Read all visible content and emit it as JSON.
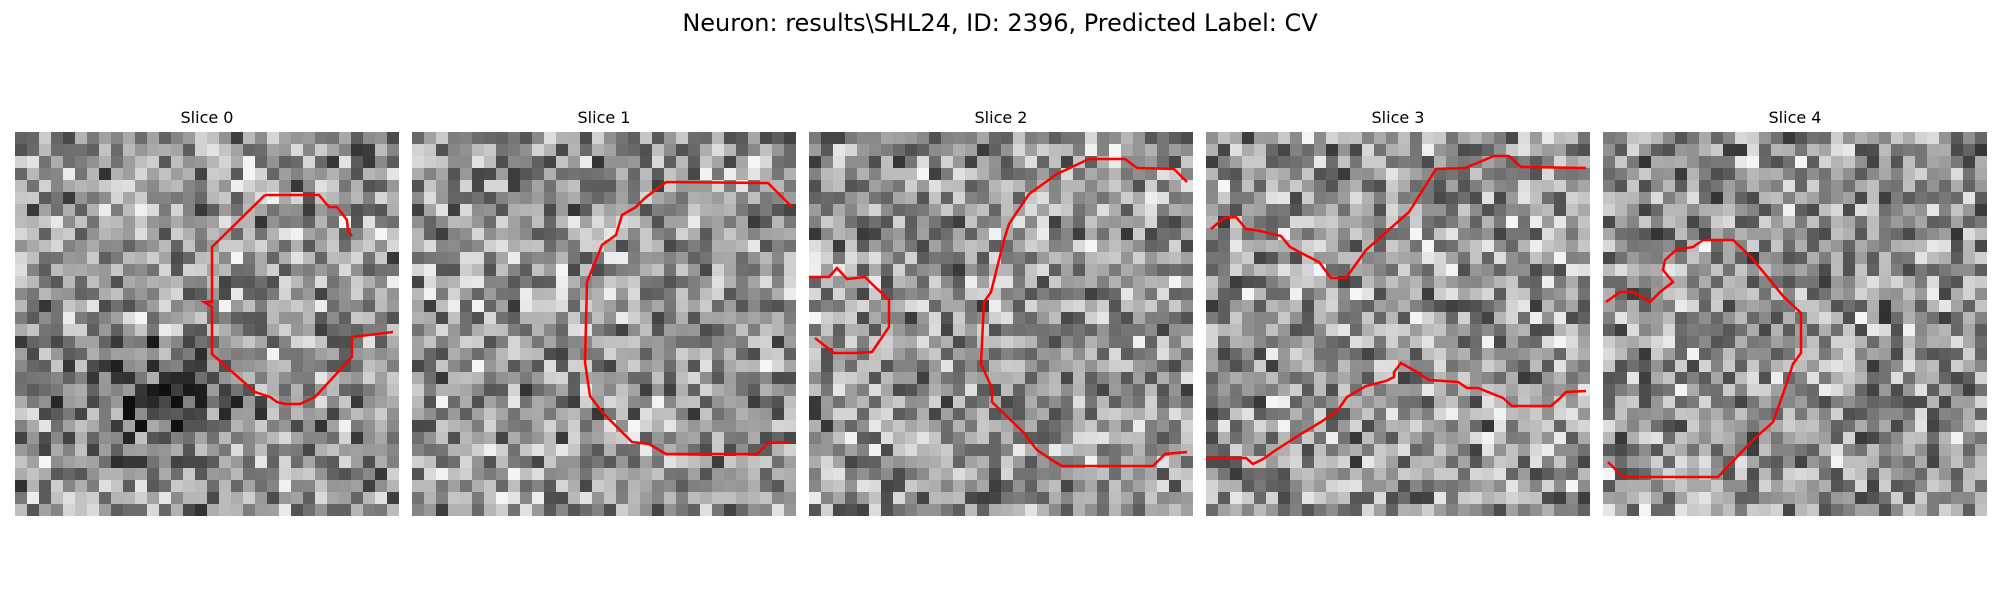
{
  "figure": {
    "title": "Neuron: results\\SHL24, ID: 2396, Predicted Label: CV",
    "panels": [
      {
        "title": "Slice 0",
        "seed": 11,
        "dark_blob": true
      },
      {
        "title": "Slice 1",
        "seed": 23,
        "dark_blob": false
      },
      {
        "title": "Slice 2",
        "seed": 37,
        "dark_blob": false
      },
      {
        "title": "Slice 3",
        "seed": 41,
        "dark_blob": false
      },
      {
        "title": "Slice 4",
        "seed": 59,
        "dark_blob": false
      }
    ]
  },
  "colors": {
    "contour": "#ff0000"
  }
}
